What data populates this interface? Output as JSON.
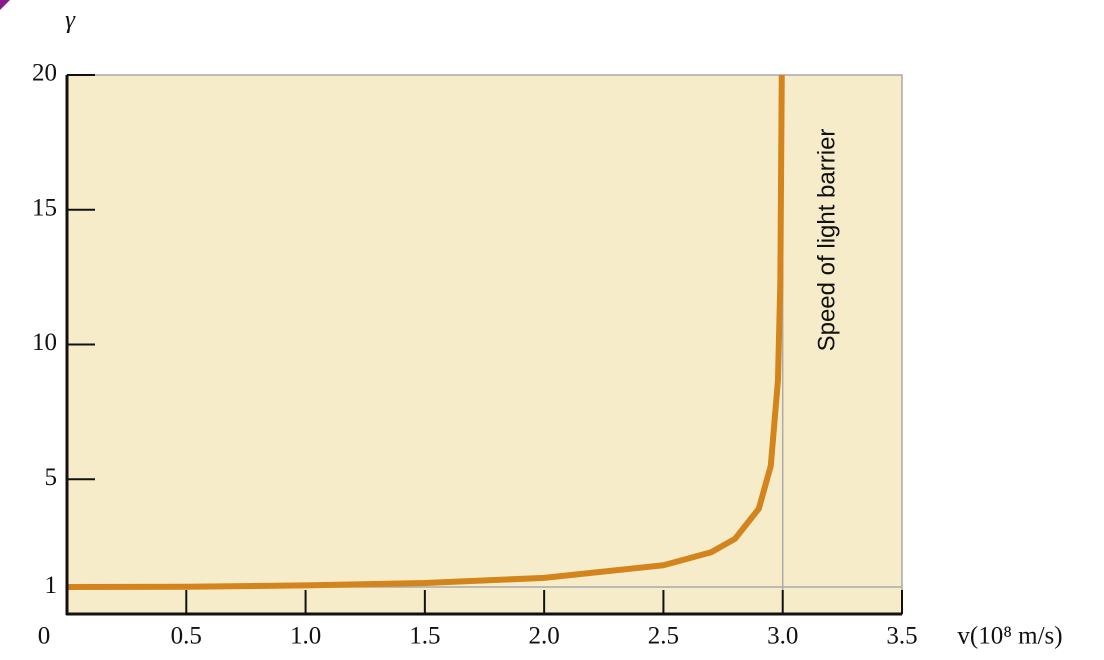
{
  "chart_data": {
    "type": "line",
    "y_label": "γ",
    "x_label": "v(10⁸ m/s)",
    "annotation": "Speed of light barrier",
    "x": [
      0,
      0.5,
      1.0,
      1.5,
      2.0,
      2.5,
      2.7,
      2.8,
      2.9,
      2.95,
      2.98,
      2.99,
      2.996
    ],
    "series": [
      {
        "color": "#d4841c",
        "values": [
          1.0,
          1.01,
          1.06,
          1.15,
          1.34,
          1.81,
          2.29,
          2.79,
          3.91,
          5.5,
          8.66,
          12.3,
          20
        ]
      }
    ],
    "xlim": [
      0,
      3.5
    ],
    "ylim": [
      0,
      20
    ],
    "xticks": [
      0,
      0.5,
      {
        "value": 1,
        "label": "1.0"
      },
      1.5,
      {
        "value": 2,
        "label": "2.0"
      },
      2.5,
      {
        "value": 3,
        "label": "3.0"
      },
      3.5
    ],
    "yticks": [
      1,
      5,
      10,
      15,
      20
    ],
    "hlines": [
      1
    ],
    "vlines": [
      3
    ],
    "plot_background": "#f7ecca"
  }
}
